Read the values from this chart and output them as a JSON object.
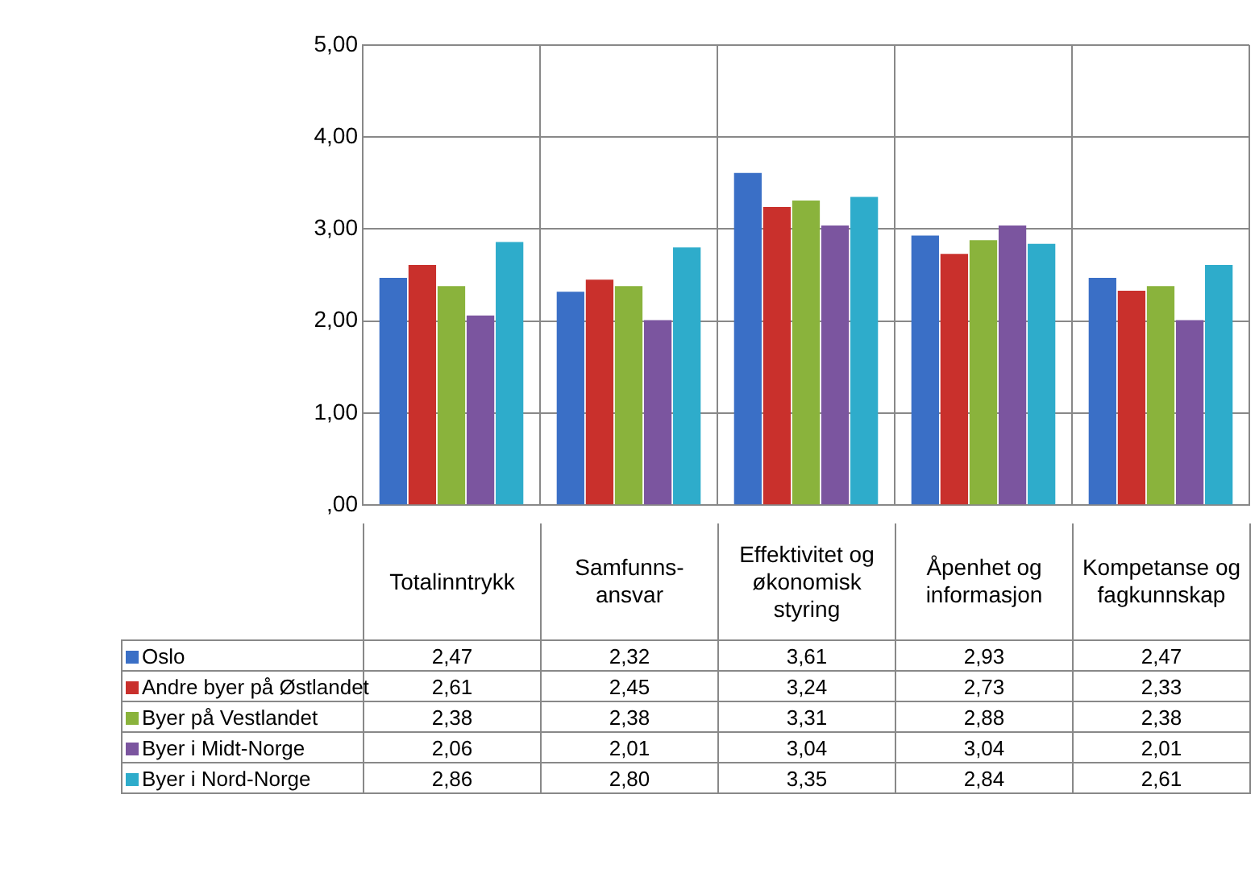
{
  "chart_data": {
    "type": "bar",
    "categories": [
      "Totalinntrykk",
      "Samfunns-ansvar",
      "Effektivitet og økonomisk styring",
      "Åpenhet og informasjon",
      "Kompetanse og fagkunnskap"
    ],
    "series": [
      {
        "name": "Oslo",
        "color": "#3a6fc6",
        "values": [
          2.47,
          2.32,
          3.61,
          2.93,
          2.47
        ],
        "value_labels": [
          "2,47",
          "2,32",
          "3,61",
          "2,93",
          "2,47"
        ]
      },
      {
        "name": "Andre byer på Østlandet",
        "color": "#c9302c",
        "values": [
          2.61,
          2.45,
          3.24,
          2.73,
          2.33
        ],
        "value_labels": [
          "2,61",
          "2,45",
          "3,24",
          "2,73",
          "2,33"
        ]
      },
      {
        "name": "Byer på Vestlandet",
        "color": "#8ab33c",
        "values": [
          2.38,
          2.38,
          3.31,
          2.88,
          2.38
        ],
        "value_labels": [
          "2,38",
          "2,38",
          "3,31",
          "2,88",
          "2,38"
        ]
      },
      {
        "name": "Byer i Midt-Norge",
        "color": "#7b559f",
        "values": [
          2.06,
          2.01,
          3.04,
          3.04,
          2.01
        ],
        "value_labels": [
          "2,06",
          "2,01",
          "3,04",
          "3,04",
          "2,01"
        ]
      },
      {
        "name": "Byer i Nord-Norge",
        "color": "#2eaccb",
        "values": [
          2.86,
          2.8,
          3.35,
          2.84,
          2.61
        ],
        "value_labels": [
          "2,86",
          "2,80",
          "3,35",
          "2,84",
          "2,61"
        ]
      }
    ],
    "ylim": [
      0,
      5
    ],
    "yticks": [
      {
        "value": 0,
        "label": ",00"
      },
      {
        "value": 1,
        "label": "1,00"
      },
      {
        "value": 2,
        "label": "2,00"
      },
      {
        "value": 3,
        "label": "3,00"
      },
      {
        "value": 4,
        "label": "4,00"
      },
      {
        "value": 5,
        "label": "5,00"
      }
    ],
    "grid": true,
    "legend": "bottom"
  }
}
